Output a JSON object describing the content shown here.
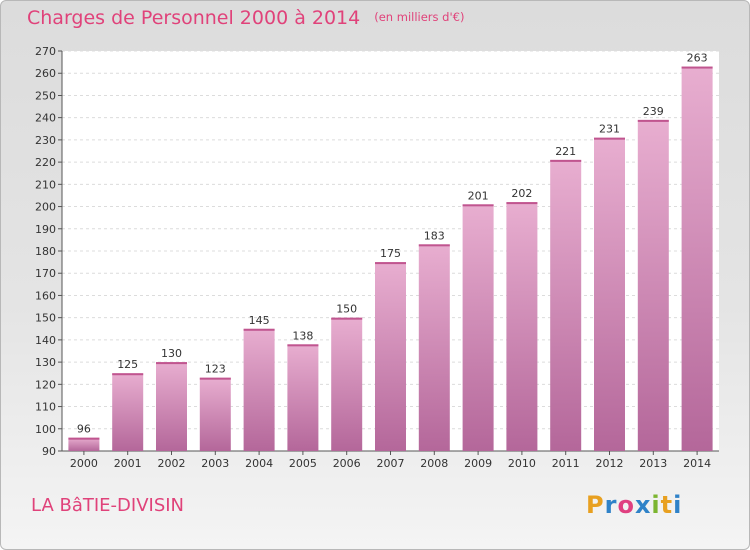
{
  "chart_data": {
    "type": "bar",
    "title": "Charges de Personnel 2000 à 2014",
    "subtitle": "(en milliers d'€)",
    "categories": [
      "2000",
      "2001",
      "2002",
      "2003",
      "2004",
      "2005",
      "2006",
      "2007",
      "2008",
      "2009",
      "2010",
      "2011",
      "2012",
      "2013",
      "2014"
    ],
    "values": [
      96,
      125,
      130,
      123,
      145,
      138,
      150,
      175,
      183,
      201,
      202,
      221,
      231,
      239,
      263
    ],
    "ylim": [
      90,
      270
    ],
    "yticks": [
      90,
      100,
      110,
      120,
      130,
      140,
      150,
      160,
      170,
      180,
      190,
      200,
      210,
      220,
      230,
      240,
      250,
      260,
      270
    ],
    "grid": true,
    "bar_color": "#d989b5"
  },
  "footer": {
    "place": "LA BâTIE-DIVISIN",
    "logo_letters": [
      "P",
      "r",
      "o",
      "x",
      "i",
      "t",
      "i"
    ],
    "logo_colors": [
      "#e8a020",
      "#2f82c8",
      "#e04080",
      "#2f82c8",
      "#7cb530",
      "#e8a020",
      "#2f82c8"
    ]
  }
}
